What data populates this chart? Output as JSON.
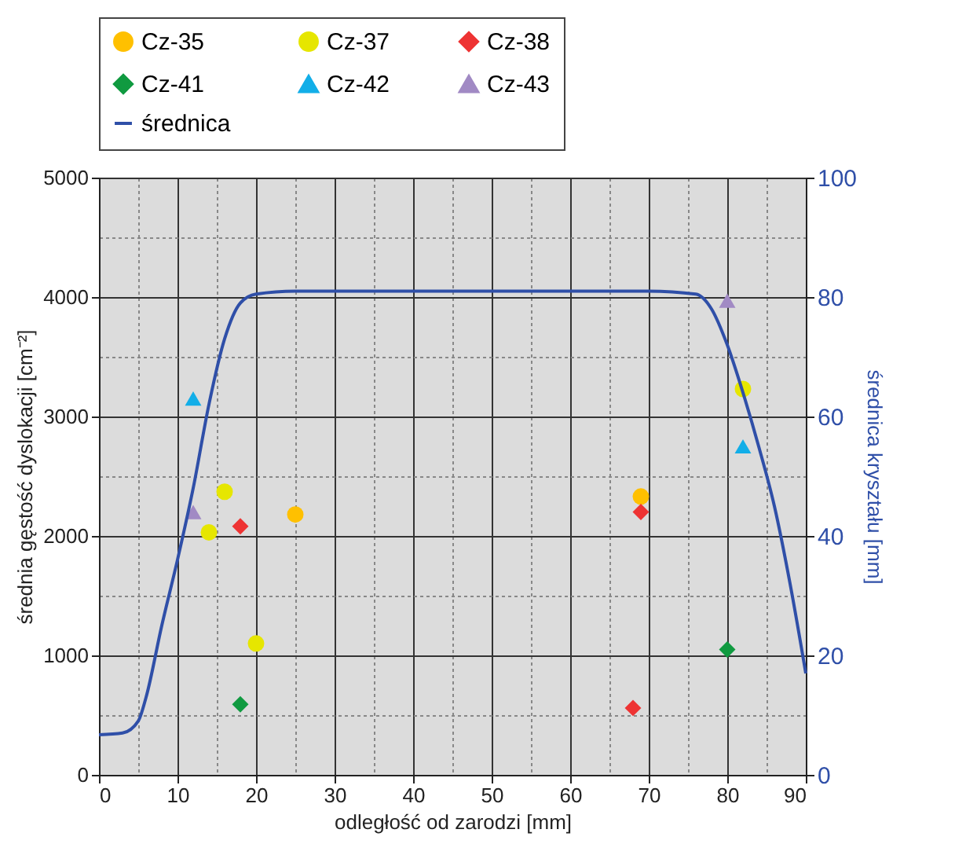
{
  "chart_data": {
    "type": "scatter",
    "xlabel": "odległość od zarodzi [mm]",
    "ylabel": "średnia gęstość dyslokacji [cm⁻²]",
    "y2label": "średnica kryształu [mm]",
    "xlim": [
      0,
      90
    ],
    "xticks": [
      0,
      {
        "value": 5,
        "label": null
      },
      10,
      {
        "value": 15,
        "label": null
      },
      20,
      {
        "value": 25,
        "label": null
      },
      30,
      {
        "value": 35,
        "label": null
      },
      40,
      {
        "value": 45,
        "label": null
      },
      50,
      {
        "value": 55,
        "label": null
      },
      60,
      {
        "value": 65,
        "label": null
      },
      70,
      {
        "value": 75,
        "label": null
      },
      80,
      {
        "value": 85,
        "label": null
      },
      90
    ],
    "ylim": [
      0,
      5000
    ],
    "yticks": [
      0,
      {
        "value": 500,
        "label": null
      },
      1000,
      {
        "value": 1500,
        "label": null
      },
      2000,
      {
        "value": 2500,
        "label": null
      },
      3000,
      {
        "value": 3500,
        "label": null
      },
      4000,
      {
        "value": 4500,
        "label": null
      },
      5000
    ],
    "y2lim": [
      0,
      100
    ],
    "y2ticks": [
      0,
      20,
      40,
      60,
      80,
      100
    ],
    "grid": true,
    "legend": "top",
    "series": [
      {
        "name": "Cz-35",
        "color": "#ffc000",
        "marker": "circle",
        "x": [
          25,
          69
        ],
        "values": [
          2180,
          2330
        ]
      },
      {
        "name": "Cz-37",
        "color": "#e6e600",
        "marker": "circle",
        "x": [
          16,
          14,
          20,
          82
        ],
        "values": [
          2370,
          2030,
          1100,
          3230
        ]
      },
      {
        "name": "Cz-38",
        "color": "#ee3333",
        "marker": "diamond",
        "x": [
          18,
          69,
          68
        ],
        "values": [
          2080,
          2200,
          560
        ]
      },
      {
        "name": "Cz-41",
        "color": "#109a40",
        "marker": "diamond",
        "x": [
          18,
          80
        ],
        "values": [
          590,
          1050
        ]
      },
      {
        "name": "Cz-42",
        "color": "#12aee8",
        "marker": "triangle",
        "x": [
          12,
          82
        ],
        "values": [
          3150,
          2750
        ]
      },
      {
        "name": "Cz-43",
        "color": "#a18ac4",
        "marker": "triangle",
        "x": [
          12,
          80
        ],
        "values": [
          2200,
          3970
        ]
      },
      {
        "name": "średnica",
        "type": "line",
        "axis": "y2",
        "color": "#2f4fa8",
        "marker": "none",
        "line_style": "solid",
        "x": [
          0,
          3,
          5,
          6,
          8,
          10,
          12,
          14,
          16,
          18,
          20,
          25,
          70,
          76,
          78,
          80,
          82,
          84,
          86,
          88,
          90
        ],
        "values": [
          6.7,
          7,
          9,
          13,
          25,
          36,
          48,
          62,
          73,
          79,
          80.5,
          81,
          81,
          80.5,
          78,
          72,
          64,
          55,
          45,
          32,
          17
        ]
      }
    ]
  }
}
